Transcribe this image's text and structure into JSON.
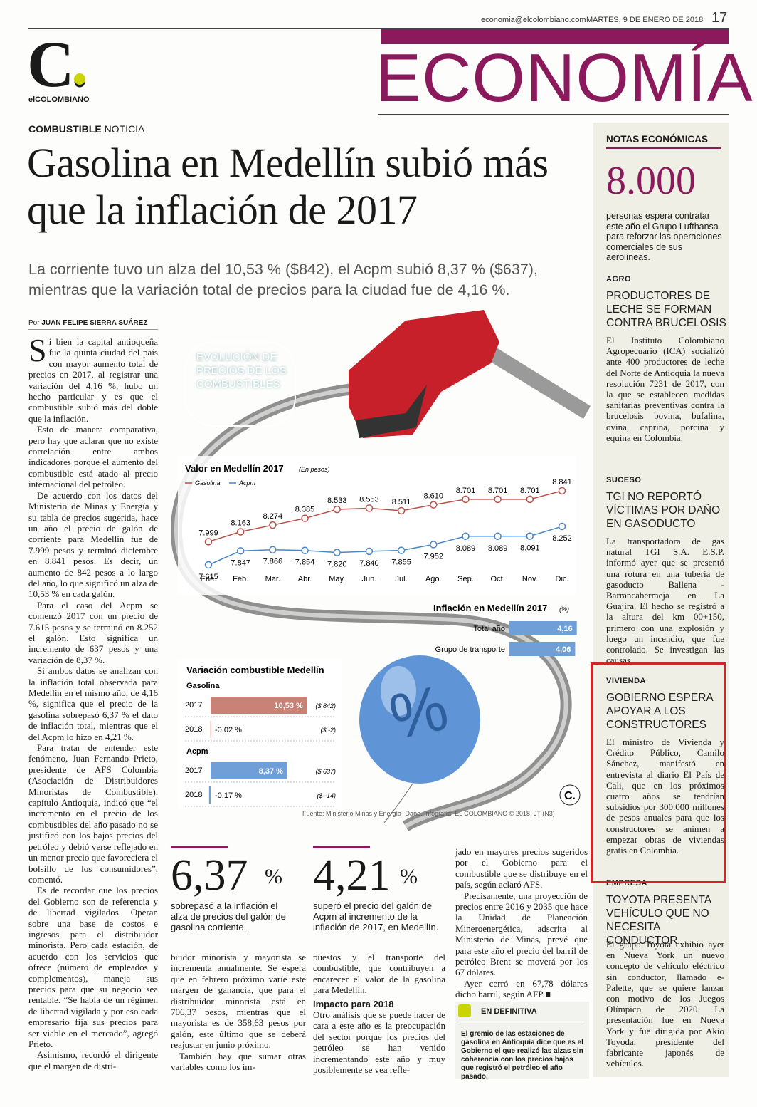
{
  "header": {
    "email": "economia@elcolombiano.com",
    "date": "MARTES, 9 DE ENERO DE 2018",
    "page_number": "17",
    "section": "ECONOMÍA"
  },
  "logo": {
    "mark": "C.",
    "name": "elCOLOMBIANO"
  },
  "article": {
    "kicker": "COMBUSTIBLE",
    "kicker_type": "NOTICIA",
    "headline": "Gasolina en Medellín subió más que la inflación de 2017",
    "subhead": "La corriente tuvo un alza del 10,53 % ($842), el Acpm subió 8,37 % ($637), mientras que la variación total de precios para la ciudad fue de 4,16 %.",
    "byline_prefix": "Por",
    "byline": "JUAN FELIPE SIERRA SUÁREZ",
    "columns": [
      {
        "paragraphs": [
          "Si bien la capital antioqueña fue la quinta ciudad del país con mayor aumento total de precios en 2017, al registrar una variación del 4,16 %, hubo un hecho particular y es que el combustible subió más del doble que la inflación.",
          "Esto de manera comparativa, pero hay que aclarar que no existe correlación entre ambos indicadores porque el aumento del combustible está atado al precio internacional del petróleo.",
          "De acuerdo con los datos del Ministerio de Minas y Energía y su tabla de precios sugerida, hace un año el precio de galón de corriente para Medellín fue de 7.999 pesos y terminó diciembre en 8.841 pesos. Es decir, un aumento de 842 pesos a lo largo del año, lo que significó un alza de 10,53 % en cada galón.",
          "Para el caso del Acpm se comenzó 2017 con un precio de 7.615 pesos y se terminó en 8.252 el galón. Esto significa un incremento de 637 pesos y una variación de 8,37 %.",
          "Si ambos datos se analizan con la inflación total observada para Medellín en el mismo año, de 4,16 %, significa que el precio de la gasolina sobrepasó 6,37 % el dato de inflación total, mientras que el del Acpm lo hizo en 4,21 %.",
          "Para tratar de entender este fenómeno, Juan Fernando Prieto, presidente de AFS Colombia (Asociación de Distribuidores Minoristas de Combustible), capítulo Antioquia, indicó que “el incremento en el precio de los combustibles del año pasado no se justificó con los bajos precios del petróleo y debió verse reflejado en un menor precio que favoreciera el bolsillo de los consumidores”, comentó.",
          "Es de recordar que los precios del Gobierno son de referencia y de libertad vigilados. Operan sobre una base de costos e ingresos para el distribuidor minorista. Pero cada estación, de acuerdo con los servicios que ofrece (número de empleados y complementos), maneja sus precios para que su negocio sea rentable. “Se habla de un régimen de libertad vigilada y por eso cada empresario fija sus precios para ser viable en el mercado”, agregó Prieto.",
          "Asimismo, recordó el dirigente que el margen de distri-"
        ]
      },
      {
        "paragraphs": [
          "buidor minorista y mayorista se incrementa anualmente. Se espera que en febrero próximo varíe este margen de ganancia, que para el distribuidor minorista está en 706,37 pesos, mientras que el mayorista es de 358,63 pesos por galón, este último que se deberá reajustar en junio próximo.",
          "También hay que sumar otras variables como los im-"
        ]
      },
      {
        "paragraphs": [
          "puestos y el transporte del combustible, que contribuyen a encarecer el valor de la gasolina para Medellín."
        ],
        "subheading": "Impacto para 2018",
        "paragraphs_after": [
          "Otro análisis que se puede hacer de cara a este año es la preocupación del sector porque los precios del petróleo se han venido incrementando este año y muy posiblemente se vea refle-"
        ]
      },
      {
        "paragraphs": [
          "jado en mayores precios sugeridos por el Gobierno para el combustible que se distribuye en el país, según aclaró AFS.",
          "Precisamente, una proyección de precios entre 2016 y 2035 que hace la Unidad de Planeación Mineroenergética, adscrita al Ministerio de Minas, prevé que para este año el precio del barril de petróleo Brent se moverá por los 67 dólares.",
          "Ayer cerró en 67,78 dólares dicho barril, según AFP ■"
        ]
      }
    ],
    "highlights": [
      {
        "value": "6,37",
        "unit": "%",
        "text": "sobrepasó a la inflación el alza de precios del galón de gasolina corriente."
      },
      {
        "value": "4,21",
        "unit": "%",
        "text": "superó el precio del galón de Acpm al incremento de la inflación de 2017, en Medellín."
      }
    ],
    "summary": {
      "title": "EN DEFINITIVA",
      "text": "El gremio de las estaciones de gasolina en Antioquia dice que es el Gobierno el que realizó las alzas sin coherencia con los precios bajos que registró el petróleo el año pasado."
    }
  },
  "infographic": {
    "title": "EVOLUCIÓN DE PRECIOS DE LOS COMBUSTIBLES",
    "line_chart": {
      "type": "line",
      "title": "Valor en Medellín 2017",
      "unit_note": "(En pesos)",
      "categories": [
        "Ene.",
        "Feb.",
        "Mar.",
        "Abr.",
        "May.",
        "Jun.",
        "Jul.",
        "Ago.",
        "Sep.",
        "Oct.",
        "Nov.",
        "Dic."
      ],
      "series": [
        {
          "name": "Gasolina",
          "color": "#b5524a",
          "values": [
            7999,
            8163,
            8274,
            8385,
            8533,
            8553,
            8511,
            8610,
            8701,
            8701,
            8701,
            8841
          ],
          "value_labels": [
            "7.999",
            "8.163",
            "8.274",
            "8.385",
            "8.533",
            "8.553",
            "8.511",
            "8.610",
            "8.701",
            "8.701",
            "8.701",
            "8.841"
          ]
        },
        {
          "name": "Acpm",
          "color": "#4a86c5",
          "values": [
            7615,
            7847,
            7866,
            7854,
            7820,
            7840,
            7855,
            7952,
            8089,
            8089,
            8091,
            8252
          ],
          "value_labels": [
            "7.615",
            "7.847",
            "7.866",
            "7.854",
            "7.820",
            "7.840",
            "7.855",
            "7.952",
            "8.089",
            "8.089",
            "8.091",
            "8.252"
          ]
        }
      ]
    },
    "inflation": {
      "type": "bar",
      "title": "Inflación en Medellín 2017",
      "unit_note": "(%)",
      "categories": [
        "Total año",
        "Grupo de transporte"
      ],
      "values": [
        4.16,
        4.06
      ],
      "value_labels": [
        "4,16",
        "4,06"
      ],
      "color": "#6f9fd6"
    },
    "variation": {
      "type": "bar",
      "title": "Variación combustible Medellín",
      "groups": [
        {
          "name": "Gasolina",
          "color": "#c98276",
          "categories": [
            "2017",
            "2018"
          ],
          "values": [
            10.53,
            -0.02
          ],
          "value_labels": [
            "10,53 %",
            "-0,02 %"
          ],
          "amounts": [
            "($ 842)",
            "($ -2)"
          ]
        },
        {
          "name": "Acpm",
          "color": "#6f9fd6",
          "categories": [
            "2017",
            "2018"
          ],
          "values": [
            8.37,
            -0.17
          ],
          "value_labels": [
            "8,37 %",
            "-0,17 %"
          ],
          "amounts": [
            "($ 637)",
            "($ -14)"
          ]
        }
      ]
    },
    "source": "Fuente: Ministerio Minas y Energía- Dane. Infografía: EL COLOMBIANO © 2018. JT (N3)"
  },
  "sidebar": {
    "title": "NOTAS ECONÓMICAS",
    "figure": "8.000",
    "figure_text": "personas espera contratar este año el Grupo Lufthansa para reforzar las operaciones comerciales de sus aerolíneas.",
    "notes": [
      {
        "tag": "AGRO",
        "headline": "PRODUCTORES DE LECHE SE FORMAN CONTRA BRUCELOSIS",
        "body": "El Instituto Colombiano Agropecuario (ICA) socializó ante 400 productores de leche del Norte de Antioquia la nueva resolución 7231 de 2017, con la que se establecen medidas sanitarias preventivas contra la brucelosis bovina, bufalina, ovina, caprina, porcina y equina en Colombia."
      },
      {
        "tag": "SUCESO",
        "headline": "TGI NO REPORTÓ VÍCTIMAS POR DAÑO EN GASODUCTO",
        "body": "La transportadora de gas natural TGI S.A. E.S.P. informó ayer que se presentó una rotura en una tubería de gasoducto Ballena -Barrancabermeja en La Guajira. El hecho se registró a la altura del km 00+150, primero con una explosión y luego un incendio, que fue controlado. Se investigan las causas."
      },
      {
        "tag": "VIVIENDA",
        "headline": "GOBIERNO ESPERA APOYAR A LOS CONSTRUCTORES",
        "body": "El ministro de Vivienda y Crédito Público, Camilo Sánchez, manifestó en entrevista al diario El País de Cali, que en los próximos cuatro años se tendrían subsidios por 300.000 millones de pesos anuales para que los constructores se animen a empezar obras de viviendas gratis en Colombia."
      },
      {
        "tag": "EMPRESA",
        "headline": "TOYOTA PRESENTA VEHÍCULO QUE NO NECESITA CONDUCTOR",
        "body": "El grupo Toyota exhibió ayer en Nueva York un nuevo concepto de vehículo eléctrico sin conductor, llamado e-Palette, que se quiere lanzar con motivo de los Juegos Olímpico de 2020. La presentación fue en Nueva York y fue dirigida por Akio Toyoda, presidente del fabricante japonés de vehículos."
      }
    ]
  }
}
